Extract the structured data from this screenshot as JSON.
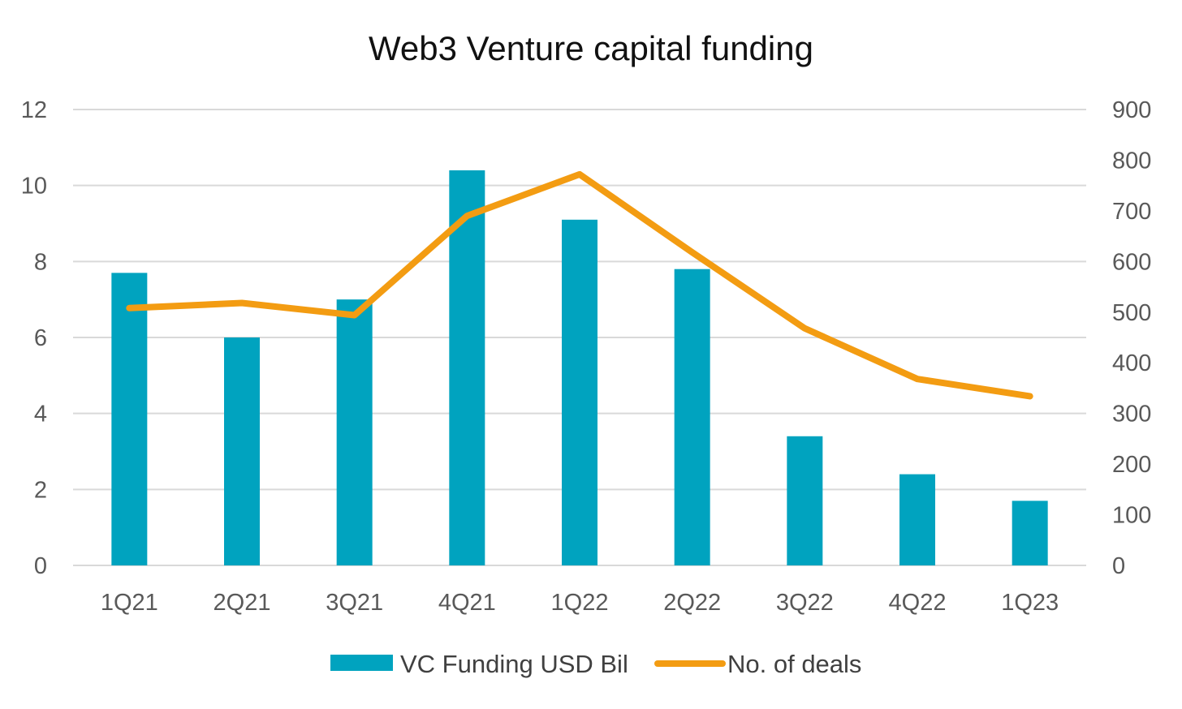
{
  "chart_data": {
    "type": "bar",
    "title": "Web3 Venture capital funding",
    "categories": [
      "1Q21",
      "2Q21",
      "3Q21",
      "4Q21",
      "1Q22",
      "2Q22",
      "3Q22",
      "4Q22",
      "1Q23"
    ],
    "series": [
      {
        "name": "VC Funding USD Bil",
        "type": "bar",
        "axis": "left",
        "color": "#00A3BF",
        "values": [
          7.7,
          6.0,
          7.0,
          10.4,
          9.1,
          7.8,
          3.4,
          2.4,
          1.7
        ]
      },
      {
        "name": "No. of deals",
        "type": "line",
        "axis": "right",
        "color": "#F39C12",
        "values": [
          508,
          518,
          494,
          690,
          772,
          618,
          468,
          368,
          334
        ]
      }
    ],
    "y_left": {
      "ylim": [
        0,
        12
      ],
      "ticks": [
        "0",
        "2",
        "4",
        "6",
        "8",
        "10",
        "12"
      ]
    },
    "y_right": {
      "ylim": [
        0,
        900
      ],
      "ticks": [
        "0",
        "100",
        "200",
        "300",
        "400",
        "500",
        "600",
        "700",
        "800",
        "900"
      ]
    },
    "grid": true,
    "legend_position": "bottom"
  }
}
